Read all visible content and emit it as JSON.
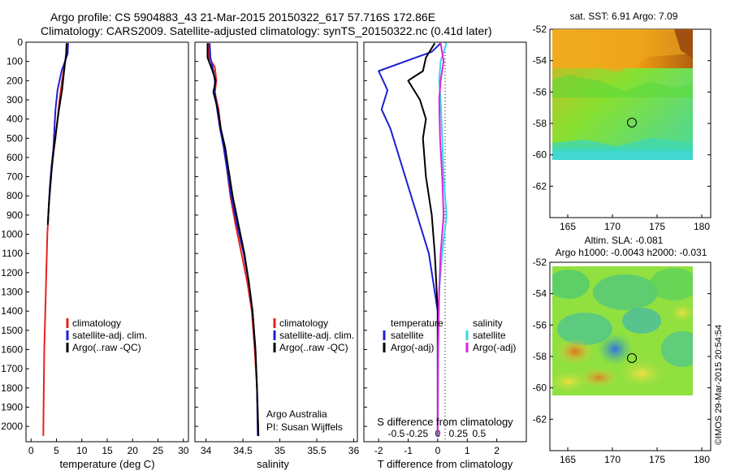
{
  "header": {
    "title_line1": "Argo profile: CS 5904883_43 21-Mar-2015 20150322_617 57.716S 172.86E",
    "title_line2": "Climatology: CARS2009. Satellite-adjusted climatology: synTS_20150322.nc (0.41d later)"
  },
  "credit": {
    "text": "©IMOS 29-Mar-2015 20:54:54"
  },
  "colors": {
    "climatology": "#e82020",
    "satellite": "#2020d0",
    "argo": "#000000",
    "sat_salinity": "#30d8e8",
    "argo_adj_salinity": "#e020e0"
  },
  "chart_data": [
    {
      "type": "line",
      "id": "temperature",
      "xlabel": "temperature (deg C)",
      "ylabel": "",
      "xlim": [
        -1,
        31
      ],
      "ylim": [
        2080,
        0
      ],
      "xticks": [
        0,
        5,
        10,
        15,
        20,
        25,
        30
      ],
      "yticks": [
        0,
        100,
        200,
        300,
        400,
        500,
        600,
        700,
        800,
        900,
        1000,
        1100,
        1200,
        1300,
        1400,
        1500,
        1600,
        1700,
        1800,
        1900,
        2000
      ],
      "legend": [
        "climatology",
        "satellite-adj. clim.",
        "Argo(..raw -QC)"
      ],
      "series": [
        {
          "name": "climatology",
          "color": "#e82020",
          "points": [
            [
              7.1,
              5
            ],
            [
              7.0,
              60
            ],
            [
              6.6,
              120
            ],
            [
              6.1,
              200
            ],
            [
              5.6,
              300
            ],
            [
              5.2,
              400
            ],
            [
              4.8,
              500
            ],
            [
              4.3,
              600
            ],
            [
              3.9,
              700
            ],
            [
              3.6,
              800
            ],
            [
              3.4,
              900
            ],
            [
              3.2,
              1000
            ],
            [
              3.0,
              1200
            ],
            [
              2.8,
              1400
            ],
            [
              2.6,
              1600
            ],
            [
              2.5,
              1800
            ],
            [
              2.4,
              2050
            ]
          ]
        },
        {
          "name": "satellite-adj. clim.",
          "color": "#2020d0",
          "points": [
            [
              7.3,
              5
            ],
            [
              7.2,
              60
            ],
            [
              6.0,
              150
            ],
            [
              5.2,
              250
            ],
            [
              4.8,
              350
            ],
            [
              4.6,
              450
            ],
            [
              4.4,
              550
            ],
            [
              4.0,
              650
            ],
            [
              3.7,
              750
            ],
            [
              3.5,
              850
            ],
            [
              3.3,
              950
            ]
          ]
        },
        {
          "name": "Argo(..raw -QC)",
          "color": "#000000",
          "points": [
            [
              7.0,
              5
            ],
            [
              6.9,
              60
            ],
            [
              6.5,
              150
            ],
            [
              6.1,
              250
            ],
            [
              5.5,
              350
            ],
            [
              5.0,
              450
            ],
            [
              4.5,
              550
            ],
            [
              4.1,
              650
            ],
            [
              3.8,
              750
            ],
            [
              3.5,
              850
            ],
            [
              3.3,
              950
            ]
          ]
        }
      ]
    },
    {
      "type": "line",
      "id": "salinity",
      "xlabel": "salinity",
      "ylabel": "",
      "xlim": [
        33.85,
        36.05
      ],
      "ylim": [
        2080,
        0
      ],
      "xticks": [
        34,
        34.5,
        35,
        35.5,
        36
      ],
      "legend": [
        "climatology",
        "satellite-adj. clim.",
        "Argo(..raw -QC)"
      ],
      "annotation": [
        "Argo Australia",
        "PI: Susan Wijffels"
      ],
      "series": [
        {
          "name": "climatology",
          "color": "#e82020",
          "points": [
            [
              34.03,
              5
            ],
            [
              34.04,
              80
            ],
            [
              34.12,
              130
            ],
            [
              34.14,
              200
            ],
            [
              34.12,
              260
            ],
            [
              34.17,
              350
            ],
            [
              34.2,
              450
            ],
            [
              34.24,
              550
            ],
            [
              34.28,
              650
            ],
            [
              34.33,
              800
            ],
            [
              34.4,
              950
            ],
            [
              34.48,
              1100
            ],
            [
              34.56,
              1250
            ],
            [
              34.62,
              1400
            ],
            [
              34.66,
              1600
            ],
            [
              34.69,
              1800
            ],
            [
              34.71,
              2050
            ]
          ]
        },
        {
          "name": "satellite-adj. clim.",
          "color": "#2020d0",
          "points": [
            [
              34.05,
              5
            ],
            [
              34.06,
              80
            ],
            [
              34.1,
              150
            ],
            [
              34.12,
              200
            ],
            [
              34.12,
              260
            ],
            [
              34.15,
              350
            ],
            [
              34.19,
              450
            ],
            [
              34.24,
              550
            ],
            [
              34.28,
              650
            ],
            [
              34.34,
              800
            ],
            [
              34.42,
              950
            ],
            [
              34.51,
              1100
            ],
            [
              34.58,
              1250
            ],
            [
              34.63,
              1400
            ],
            [
              34.67,
              1600
            ],
            [
              34.69,
              1800
            ],
            [
              34.7,
              2050
            ]
          ]
        },
        {
          "name": "Argo(..raw -QC)",
          "color": "#000000",
          "points": [
            [
              34.02,
              5
            ],
            [
              34.02,
              80
            ],
            [
              34.08,
              140
            ],
            [
              34.13,
              200
            ],
            [
              34.1,
              260
            ],
            [
              34.16,
              350
            ],
            [
              34.2,
              450
            ],
            [
              34.26,
              550
            ],
            [
              34.3,
              650
            ],
            [
              34.36,
              800
            ],
            [
              34.44,
              950
            ],
            [
              34.52,
              1100
            ],
            [
              34.58,
              1250
            ],
            [
              34.63,
              1400
            ],
            [
              34.67,
              1600
            ],
            [
              34.69,
              1800
            ],
            [
              34.71,
              2050
            ]
          ]
        }
      ]
    },
    {
      "type": "line",
      "id": "difference",
      "xlabel": "T difference from climatology",
      "top_label": "S difference from climatology",
      "xlim": [
        -2.5,
        3.0
      ],
      "ylim": [
        2080,
        0
      ],
      "xticks_t": [
        -2,
        -1,
        0,
        1,
        2
      ],
      "xticks_s": [
        "-0.5",
        "-0.25",
        "0",
        "0.25",
        "0.5"
      ],
      "legend_temperature": [
        "temperature",
        "satellite",
        "Argo(-adj)"
      ],
      "legend_salinity": [
        "salinity",
        "satellite",
        "Argo(-adj)"
      ],
      "series": [
        {
          "name": "satellite",
          "group": "temperature",
          "color": "#2020d0",
          "points": [
            [
              0.1,
              5
            ],
            [
              -0.2,
              50
            ],
            [
              -2.0,
              150
            ],
            [
              -1.7,
              250
            ],
            [
              -1.9,
              350
            ],
            [
              -1.6,
              450
            ],
            [
              -1.4,
              550
            ],
            [
              -1.1,
              700
            ],
            [
              -0.7,
              900
            ],
            [
              -0.3,
              1100
            ],
            [
              0,
              1400
            ],
            [
              0,
              1800
            ],
            [
              0,
              2050
            ]
          ]
        },
        {
          "name": "Argo(-adj)",
          "group": "temperature",
          "color": "#000000",
          "points": [
            [
              -0.1,
              5
            ],
            [
              -0.4,
              80
            ],
            [
              -0.5,
              150
            ],
            [
              -1.0,
              200
            ],
            [
              -0.6,
              300
            ],
            [
              -0.4,
              400
            ],
            [
              -0.5,
              500
            ],
            [
              -0.4,
              700
            ],
            [
              -0.2,
              900
            ],
            [
              -0.1,
              1100
            ],
            [
              0,
              1400
            ],
            [
              0,
              1800
            ],
            [
              0,
              2050
            ]
          ]
        },
        {
          "name": "satellite",
          "group": "salinity",
          "color": "#30d8e8",
          "points": [
            [
              0.3,
              5
            ],
            [
              0.1,
              100
            ],
            [
              0.05,
              200
            ],
            [
              0.1,
              300
            ],
            [
              0.15,
              500
            ],
            [
              0.2,
              700
            ],
            [
              0.3,
              900
            ],
            [
              0.15,
              1100
            ],
            [
              0.05,
              1300
            ],
            [
              0.02,
              1600
            ],
            [
              0,
              2050
            ]
          ]
        },
        {
          "name": "Argo(-adj)",
          "group": "salinity",
          "color": "#e020e0",
          "points": [
            [
              0.1,
              5
            ],
            [
              0.2,
              100
            ],
            [
              0.1,
              200
            ],
            [
              0.05,
              300
            ],
            [
              0.08,
              500
            ],
            [
              0.15,
              700
            ],
            [
              0.2,
              900
            ],
            [
              0.1,
              1100
            ],
            [
              0.05,
              1300
            ],
            [
              0.01,
              1600
            ],
            [
              0,
              2050
            ]
          ]
        }
      ]
    },
    {
      "type": "heatmap",
      "id": "sst_map",
      "title": "sat. SST: 6.91  Argo: 7.09",
      "xlim": [
        163,
        181
      ],
      "ylim": [
        -64,
        -52
      ],
      "xticks": [
        165,
        170,
        175,
        180
      ],
      "yticks": [
        -52,
        -54,
        -56,
        -58,
        -60,
        -62
      ],
      "marker": [
        172.86,
        -57.716
      ]
    },
    {
      "type": "heatmap",
      "id": "sla_map",
      "title": "Altim. SLA: -0.081",
      "subtitle": "Argo h1000: -0.0043  h2000: -0.031",
      "xlim": [
        163,
        181
      ],
      "ylim": [
        -64,
        -52
      ],
      "xticks": [
        165,
        170,
        175,
        180
      ],
      "yticks": [
        -52,
        -54,
        -56,
        -58,
        -60,
        -62
      ],
      "marker": [
        172.86,
        -57.716
      ]
    }
  ]
}
